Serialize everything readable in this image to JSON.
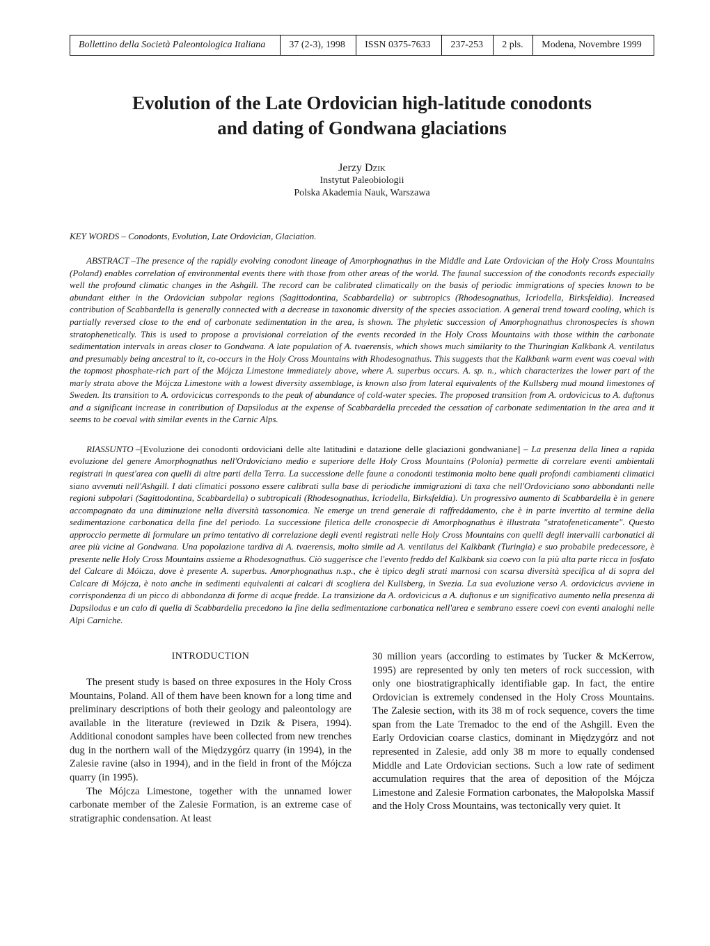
{
  "header": {
    "journal": "Bollettino della Società Paleontologica Italiana",
    "volume": "37 (2-3), 1998",
    "issn": "ISSN 0375-7633",
    "pages": "237-253",
    "plates": "2 pls.",
    "place_date": "Modena, Novembre 1999"
  },
  "title_line1": "Evolution of the Late Ordovician high-latitude conodonts",
  "title_line2": "and dating of Gondwana glaciations",
  "author": {
    "name_first": "Jerzy ",
    "name_last": "Dzik",
    "affil1": "Instytut Paleobiologii",
    "affil2": "Polska Akademia Nauk, Warszawa"
  },
  "keywords_label": "KEY WORDS – ",
  "keywords_text": "Conodonts, Evolution, Late Ordovician, Glaciation.",
  "abstract_label": "ABSTRACT – ",
  "abstract_text": "The presence of the rapidly evolving conodont lineage of Amorphognathus in the Middle and Late Ordovician of the Holy Cross Mountains (Poland) enables correlation of environmental events there with those from other areas of the world. The faunal succession of the conodonts records especially well the profound climatic changes in the Ashgill. The record can be calibrated climatically on the basis of periodic immigrations of species known to be abundant either in the Ordovician subpolar regions (Sagittodontina, Scabbardella) or subtropics (Rhodesognathus, Icriodella, Birksfeldia). Increased contribution of Scabbardella is generally connected with a decrease in taxonomic diversity of the species association. A general trend toward cooling, which is partially reversed close to the end of carbonate sedimentation in the area, is shown. The phyletic succession of Amorphognathus chronospecies is shown stratophenetically. This is used to propose a provisional correlation of the events recorded in the Holy Cross Mountains with those within the carbonate sedimentation intervals in areas closer to Gondwana. A late population of A. tvaerensis, which shows much similarity to the Thuringian Kalkbank A. ventilatus and presumably being ancestral to it, co-occurs in the Holy Cross Mountains with Rhodesognathus. This suggests that the Kalkbank warm event was coeval with the topmost phosphate-rich part of the Mójcza Limestone immediately above, where A. superbus occurs. A. sp. n., which characterizes the lower part of the marly strata above the Mójcza Limestone with a lowest diversity assemblage, is known also from lateral equivalents of the Kullsberg mud mound limestones of Sweden. Its transition to A. ordovicicus corresponds to the peak of abundance of cold-water species. The proposed transition from A. ordovicicus to A. duftonus and a significant increase in contribution of Dapsilodus at the expense of Scabbardella preceded the cessation of carbonate sedimentation in the area and it seems to be coeval with similar events in the Carnic Alps.",
  "riassunto_label": "RIASSUNTO – ",
  "riassunto_bracket": "[Evoluzione dei conodonti ordoviciani delle alte latitudini e datazione delle glaciazioni gondwaniane] – ",
  "riassunto_text": "La presenza della linea a rapida evoluzione del genere Amorphognathus nell'Ordoviciano medio e superiore delle Holy Cross Mountains (Polonia) permette di correlare eventi ambientali registrati in quest'area con quelli di altre parti della Terra. La successione delle faune a conodonti testimonia molto bene quali profondi cambiamenti climatici siano avvenuti nell'Ashgill. I dati climatici possono essere calibrati sulla base di periodiche immigrazioni di taxa che nell'Ordoviciano sono abbondanti nelle regioni subpolari (Sagittodontina, Scabbardella) o subtropicali (Rhodesognathus, Icriodella, Birksfeldia). Un progressivo aumento di Scabbardella è in genere accompagnato da una diminuzione nella diversità tassonomica. Ne emerge un trend generale di raffreddamento, che è in parte invertito al termine della sedimentazione carbonatica della fine del periodo. La successione filetica delle cronospecie di Amorphognathus è illustrata \"stratofeneticamente\". Questo approccio permette di formulare un primo tentativo di correlazione degli eventi registrati nelle Holy Cross Mountains con quelli degli intervalli carbonatici di aree più vicine al Gondwana. Una popolazione tardiva di A. tvaerensis, molto simile ad A. ventilatus del Kalkbank (Turingia) e suo probabile predecessore, è presente nelle Holy Cross Mountains assieme a Rhodesognathus. Ciò suggerisce che l'evento freddo del Kalkbank sia coevo con la più alta parte ricca in fosfato del Calcare di Móicza, dove è presente A. superbus. Amorphognathus n.sp., che è tipico degli strati marnosi con scarsa diversità specifica al di sopra del Calcare di Mójcza, è noto anche in sedimenti equivalenti ai calcari di scogliera del Kullsberg, in Svezia. La sua evoluzione verso A. ordovicicus avviene in corrispondenza di un picco di abbondanza di forme di acque fredde. La transizione da A. ordovicicus a A. duftonus e un significativo aumento nella presenza di Dapsilodus e un calo di quella di Scabbardella precedono la fine della sedimentazione carbonatica nell'area e sembrano essere coevi con eventi analoghi nelle Alpi Carniche.",
  "introduction": {
    "heading": "INTRODUCTION",
    "left_p1": "The present study is based on three exposures in the Holy Cross Mountains, Poland. All of them have been known for a long time and preliminary descriptions of both their geology and paleontology are available in the literature (reviewed in Dzik & Pisera, 1994). Additional conodont samples have been collected from new trenches dug in the northern wall of the Międzygórz quarry (in 1994), in the Zalesie ravine (also in 1994), and in the field in front of the Mójcza quarry (in 1995).",
    "left_p2": "The Mójcza Limestone, together with the unnamed lower carbonate member of the Zalesie Formation, is an extreme case of stratigraphic condensation. At least",
    "right_p1": "30 million years (according to estimates by Tucker & McKerrow, 1995) are represented by only ten meters of rock succession, with only one biostratigraphically identifiable gap. In fact, the entire Ordovician is extremely condensed in the Holy Cross Mountains. The Zalesie section, with its 38 m of rock sequence, covers the time span from the Late Tremadoc to the end of the Ashgill. Even the Early Ordovician coarse clastics, dominant in Międzygórz and not represented in Zalesie, add only 38 m more to equally condensed Middle and Late Ordovician sections. Such a low rate of sediment accumulation requires that the area of deposition of the Mójcza Limestone and Zalesie Formation carbonates, the Małopolska Massif and the Holy Cross Mountains, was tectonically very quiet. It"
  }
}
